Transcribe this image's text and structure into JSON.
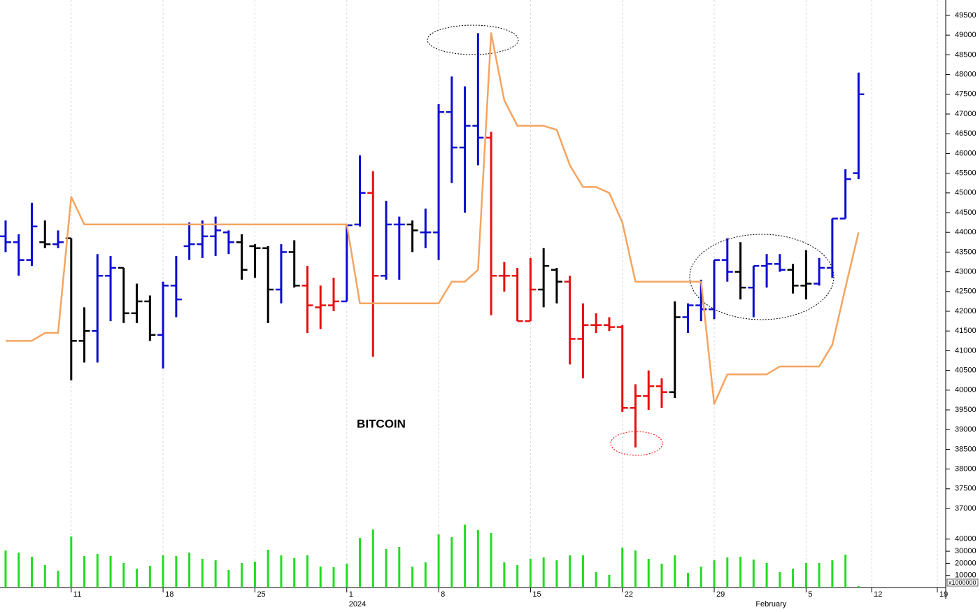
{
  "chart_data": [
    {
      "type": "ohlc",
      "annotation": "BITCOIN",
      "categories": [
        null,
        null,
        null,
        null,
        null,
        "11",
        null,
        null,
        null,
        null,
        null,
        null,
        "18",
        null,
        null,
        null,
        null,
        null,
        null,
        "25",
        null,
        null,
        null,
        null,
        null,
        null,
        "1",
        null,
        null,
        null,
        null,
        null,
        null,
        "8",
        null,
        null,
        null,
        null,
        null,
        null,
        "15",
        null,
        null,
        null,
        null,
        null,
        null,
        "22",
        null,
        null,
        null,
        null,
        null,
        null,
        "29",
        null,
        null,
        null,
        null,
        null,
        null,
        "5",
        null,
        null,
        null,
        null,
        "12",
        null,
        null,
        null,
        null,
        "19"
      ],
      "month_labels": [
        null,
        null,
        null,
        null,
        null,
        null,
        null,
        null,
        null,
        null,
        null,
        null,
        null,
        null,
        null,
        null,
        null,
        null,
        null,
        null,
        null,
        null,
        null,
        null,
        null,
        null,
        "2024",
        null,
        null,
        null,
        null,
        null,
        null,
        null,
        null,
        null,
        null,
        null,
        null,
        null,
        null,
        null,
        null,
        null,
        null,
        null,
        null,
        null,
        null,
        null,
        null,
        null,
        null,
        null,
        null,
        null,
        null,
        "February",
        null,
        null,
        null,
        null,
        null,
        null,
        null,
        null,
        null,
        null,
        null,
        null,
        null,
        null
      ],
      "open": [
        43900,
        43750,
        43300,
        43750,
        43700,
        43850,
        41250,
        41500,
        42900,
        43100,
        41950,
        42250,
        41400,
        42650,
        43650,
        43700,
        43900,
        44000,
        43750,
        43650,
        43600,
        42550,
        43500,
        42650,
        42100,
        42150,
        42250,
        44200,
        45000,
        42900,
        44200,
        44200,
        44000,
        44000,
        47050,
        46150,
        46700,
        46400,
        42900,
        42900,
        41750,
        42550,
        43050,
        42750,
        41300,
        41650,
        41650,
        41600,
        39550,
        39850,
        40100,
        39950,
        41850,
        42150,
        42050,
        43300,
        43000,
        42600,
        43150,
        43200,
        43050,
        42650,
        42700,
        43100,
        44350,
        45500,
        null,
        null,
        null,
        null,
        null,
        null
      ],
      "high": [
        44300,
        43950,
        44750,
        44300,
        44050,
        43850,
        42100,
        43450,
        43400,
        43100,
        42700,
        42400,
        42750,
        43400,
        44250,
        44300,
        44400,
        44050,
        43950,
        43700,
        43650,
        43700,
        43800,
        43150,
        42650,
        42850,
        44200,
        45950,
        45550,
        44800,
        44400,
        44300,
        44600,
        47250,
        47950,
        47700,
        49050,
        46550,
        43250,
        43100,
        43350,
        43600,
        43100,
        42900,
        42200,
        41950,
        41850,
        41650,
        40150,
        40500,
        40300,
        42250,
        42200,
        42800,
        43300,
        43850,
        43750,
        43150,
        43450,
        43450,
        43200,
        43550,
        43350,
        44350,
        45600,
        48050,
        null,
        null,
        null,
        null,
        null,
        null
      ],
      "low": [
        43500,
        42900,
        43150,
        43600,
        43600,
        40250,
        40700,
        40700,
        41750,
        41700,
        41700,
        41250,
        40550,
        41850,
        43300,
        43350,
        43400,
        43450,
        42800,
        42850,
        41700,
        42200,
        42600,
        41450,
        41550,
        42000,
        42250,
        44150,
        40850,
        42800,
        42800,
        43500,
        43600,
        43300,
        45250,
        44500,
        45700,
        41900,
        42500,
        41750,
        41750,
        42100,
        42200,
        40650,
        40300,
        41450,
        41500,
        39450,
        38550,
        39500,
        39550,
        39800,
        41450,
        41750,
        41800,
        42750,
        42300,
        41850,
        42600,
        43000,
        42450,
        42300,
        42650,
        42850,
        44350,
        45350,
        null,
        null,
        null,
        null,
        null,
        null
      ],
      "close": [
        43750,
        43300,
        44150,
        43700,
        43750,
        41250,
        41500,
        42900,
        43100,
        41950,
        42250,
        41400,
        42650,
        42300,
        43700,
        43900,
        44050,
        43750,
        43050,
        43600,
        42550,
        43500,
        42650,
        42150,
        42150,
        42250,
        44180,
        45000,
        42900,
        44200,
        44200,
        44050,
        44000,
        47050,
        46150,
        46700,
        46400,
        42900,
        42900,
        41750,
        42550,
        43150,
        42750,
        41300,
        41650,
        41650,
        41600,
        39550,
        39850,
        40100,
        39950,
        41850,
        42150,
        42050,
        43300,
        43000,
        42600,
        43150,
        43200,
        43050,
        42650,
        42700,
        43100,
        44350,
        45350,
        47500,
        null,
        null,
        null,
        null,
        null,
        null
      ],
      "bar_colors": [
        "#0a0ad2",
        "#0a0ad2",
        "#0a0ad2",
        "#000000",
        "#0a0ad2",
        "#000000",
        "#000000",
        "#0a0ad2",
        "#0a0ad2",
        "#000000",
        "#000000",
        "#000000",
        "#0a0ad2",
        "#0a0ad2",
        "#0a0ad2",
        "#0a0ad2",
        "#0a0ad2",
        "#0a0ad2",
        "#000000",
        "#000000",
        "#000000",
        "#0a0ad2",
        "#000000",
        "#e60f0f",
        "#e60f0f",
        "#e60f0f",
        "#0a0ad2",
        "#0a0ad2",
        "#e60f0f",
        "#0a0ad2",
        "#0a0ad2",
        "#000000",
        "#0a0ad2",
        "#0a0ad2",
        "#0a0ad2",
        "#0a0ad2",
        "#0a0ad2",
        "#e60f0f",
        "#e60f0f",
        "#e60f0f",
        "#e60f0f",
        "#000000",
        "#000000",
        "#e60f0f",
        "#e60f0f",
        "#e60f0f",
        "#e60f0f",
        "#e60f0f",
        "#e60f0f",
        "#e60f0f",
        "#e60f0f",
        "#000000",
        "#0a0ad2",
        "#0a0ad2",
        "#0a0ad2",
        "#0a0ad2",
        "#000000",
        "#0a0ad2",
        "#0a0ad2",
        "#0a0ad2",
        "#000000",
        "#000000",
        "#0a0ad2",
        "#0a0ad2",
        "#0a0ad2",
        "#0a0ad2",
        null,
        null,
        null,
        null,
        null,
        null
      ],
      "line": {
        "color": "#f5a460",
        "values": [
          41250,
          41250,
          41250,
          41450,
          41450,
          44900,
          44200,
          44200,
          44200,
          44200,
          44200,
          44200,
          44200,
          44200,
          44200,
          44200,
          44200,
          44200,
          44200,
          44200,
          44200,
          44200,
          44200,
          44200,
          44200,
          44200,
          44200,
          42200,
          42200,
          42200,
          42200,
          42200,
          42200,
          42200,
          42750,
          42750,
          43050,
          49050,
          47350,
          46700,
          46700,
          46700,
          46600,
          45700,
          45150,
          45150,
          45000,
          44250,
          42750,
          42750,
          42750,
          42750,
          42750,
          42750,
          39650,
          40400,
          40400,
          40400,
          40400,
          40600,
          40600,
          40600,
          40600,
          41150,
          42600,
          44000,
          null,
          null,
          null,
          null,
          null,
          null
        ]
      },
      "ylim": [
        36770,
        49890
      ],
      "yticks": [
        37000,
        37500,
        38000,
        38500,
        39000,
        39500,
        40000,
        40500,
        41000,
        41500,
        42000,
        42500,
        43000,
        43500,
        44000,
        44500,
        45000,
        45500,
        46000,
        46500,
        47000,
        47500,
        48000,
        48500,
        49000,
        49500
      ]
    },
    {
      "type": "bar",
      "axis_unit": "x1000000",
      "color": "#22dd22",
      "values": [
        30600,
        28900,
        25400,
        18500,
        13900,
        42200,
        26000,
        27700,
        26000,
        20200,
        15600,
        17900,
        26600,
        26000,
        28900,
        23700,
        22500,
        14500,
        20200,
        21400,
        31200,
        26600,
        24300,
        26600,
        17300,
        16800,
        19700,
        41000,
        48000,
        31800,
        33500,
        17300,
        20800,
        43900,
        41600,
        52000,
        47400,
        45100,
        20800,
        18500,
        23700,
        24900,
        22500,
        26600,
        26600,
        12700,
        10400,
        32900,
        30600,
        23700,
        19700,
        26600,
        12100,
        17300,
        22500,
        24900,
        25400,
        23100,
        20200,
        12700,
        15600,
        20200,
        20200,
        22500,
        27200,
        1200,
        null,
        null,
        null,
        null,
        null,
        null
      ],
      "ylim": [
        0,
        57800
      ],
      "yticks": [
        10000,
        20000,
        30000,
        40000
      ]
    }
  ]
}
